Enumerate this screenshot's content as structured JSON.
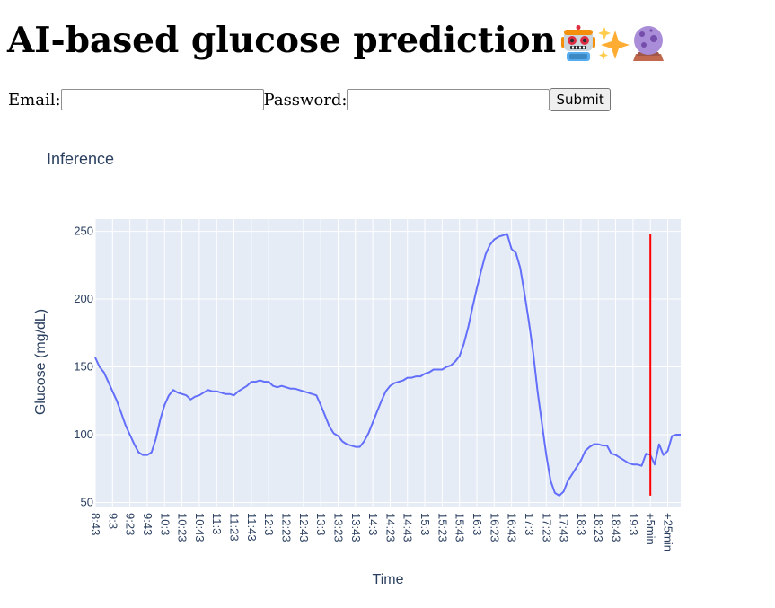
{
  "header": {
    "title": "AI-based glucose prediction",
    "emojis": [
      "robot-emoji",
      "sparkles-emoji",
      "crystal-ball-emoji"
    ]
  },
  "form": {
    "email_label": "Email:",
    "email_value": "",
    "password_label": "Password:",
    "password_value": "",
    "submit_label": "Submit"
  },
  "colors": {
    "series": "#636efa",
    "marker_line": "#ff0000",
    "plot_bg": "#e5ecf6",
    "axis_text": "#2a3f5f"
  },
  "chart_data": {
    "type": "line",
    "title": "Inference",
    "xlabel": "Time",
    "ylabel": "Glucose (mg/dL)",
    "ylim": [
      47,
      259
    ],
    "yticks": [
      50,
      100,
      150,
      200,
      250
    ],
    "grid": true,
    "legend": "none",
    "x_tick_labels": [
      "8:43",
      "9:3",
      "9:23",
      "9:43",
      "10:3",
      "10:23",
      "10:43",
      "11:3",
      "11:23",
      "11:43",
      "12:3",
      "12:23",
      "12:43",
      "13:3",
      "13:23",
      "13:43",
      "14:3",
      "14:23",
      "14:43",
      "15:3",
      "15:23",
      "15:43",
      "16:3",
      "16:23",
      "16:43",
      "17:3",
      "17:23",
      "17:43",
      "18:3",
      "18:23",
      "18:43",
      "19:3",
      "+5min",
      "+25min"
    ],
    "x_tick_positions": [
      0,
      4,
      8,
      12,
      16,
      20,
      24,
      28,
      32,
      36,
      40,
      44,
      48,
      52,
      56,
      60,
      64,
      68,
      72,
      76,
      80,
      84,
      88,
      92,
      96,
      100,
      104,
      108,
      112,
      116,
      120,
      124,
      128,
      132
    ],
    "x_range": [
      0,
      135
    ],
    "series": [
      {
        "x": [
          0,
          1,
          2,
          3,
          4,
          5,
          6,
          7,
          8,
          9,
          10,
          11,
          12,
          13,
          14,
          15,
          16,
          17,
          18,
          19,
          20,
          21,
          22,
          23,
          24,
          25,
          26,
          27,
          28,
          29,
          30,
          31,
          32,
          33,
          34,
          35,
          36,
          37,
          38,
          39,
          40,
          41,
          42,
          43,
          44,
          45,
          46,
          47,
          48,
          49,
          50,
          51,
          52,
          53,
          54,
          55,
          56,
          57,
          58,
          59,
          60,
          61,
          62,
          63,
          64,
          65,
          66,
          67,
          68,
          69,
          70,
          71,
          72,
          73,
          74,
          75,
          76,
          77,
          78,
          79,
          80,
          81,
          82,
          83,
          84,
          85,
          86,
          87,
          88,
          89,
          90,
          91,
          92,
          93,
          94,
          95,
          96,
          97,
          98,
          99,
          100,
          101,
          102,
          103,
          104,
          105,
          106,
          107,
          108,
          109,
          110,
          111,
          112,
          113,
          114,
          115,
          116,
          117,
          118,
          119,
          120,
          121,
          122,
          123,
          124,
          125,
          126,
          127,
          128,
          129,
          130,
          131,
          132,
          133,
          134,
          135
        ],
        "values": [
          157,
          150,
          146,
          139,
          132,
          125,
          116,
          107,
          100,
          93,
          87,
          85,
          85,
          87,
          97,
          111,
          122,
          129,
          133,
          131,
          130,
          129,
          126,
          128,
          129,
          131,
          133,
          132,
          132,
          131,
          130,
          130,
          129,
          132,
          134,
          136,
          139,
          139,
          140,
          139,
          139,
          136,
          135,
          136,
          135,
          134,
          134,
          133,
          132,
          131,
          130,
          129,
          122,
          114,
          106,
          101,
          99,
          95,
          93,
          92,
          91,
          91,
          95,
          101,
          109,
          117,
          125,
          132,
          136,
          138,
          139,
          140,
          142,
          142,
          143,
          143,
          145,
          146,
          148,
          148,
          148,
          150,
          151,
          154,
          158,
          167,
          179,
          194,
          208,
          221,
          233,
          240,
          244,
          246,
          247,
          248,
          237,
          234,
          223,
          204,
          183,
          160,
          132,
          108,
          85,
          66,
          57,
          55,
          58,
          66,
          71,
          76,
          81,
          88,
          91,
          93,
          93,
          92,
          92,
          86,
          85,
          83,
          81,
          79,
          78,
          78,
          77,
          86,
          85,
          78,
          93,
          85,
          88,
          99,
          100,
          100
        ]
      }
    ],
    "vertical_marker": {
      "x": 128,
      "y_from": 55,
      "y_to": 248
    }
  }
}
